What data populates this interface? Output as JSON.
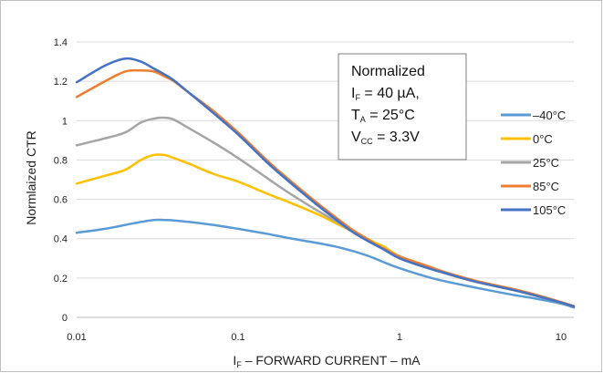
{
  "chart_data": {
    "type": "line",
    "title": "",
    "xlabel": {
      "main": "I",
      "sub": "F",
      "rest": " – FORWARD CURRENT – mA"
    },
    "ylabel": "Normlaized CTR",
    "x_scale": "log",
    "xlim": [
      0.01,
      12
    ],
    "ylim": [
      0,
      1.4
    ],
    "x_ticks": [
      0.01,
      0.1,
      1,
      10
    ],
    "x_tick_labels": [
      "0.01",
      "0.1",
      "1",
      "10"
    ],
    "y_ticks": [
      0,
      0.2,
      0.4,
      0.6,
      0.8,
      1,
      1.2,
      1.4
    ],
    "y_tick_labels": [
      "0",
      "0.2",
      "0.4",
      "0.6",
      "0.8",
      "1",
      "1.2",
      "1.4"
    ],
    "grid": "horizontal",
    "legend_position": "right",
    "annotation": {
      "title": "Normalized",
      "lines": [
        {
          "main": "I",
          "sub": "F",
          "rest": " = 40 µA,"
        },
        {
          "main": "T",
          "sub": "A",
          "rest": " = 25°C"
        },
        {
          "main": "V",
          "sub": "CC",
          "rest": " = 3.3V"
        }
      ]
    },
    "series": [
      {
        "name": "–40°C",
        "color": "#5b9bd5",
        "x": [
          0.01,
          0.015,
          0.02,
          0.025,
          0.03,
          0.035,
          0.04,
          0.05,
          0.07,
          0.1,
          0.15,
          0.2,
          0.3,
          0.4,
          0.5,
          0.6,
          0.7,
          0.8,
          1,
          1.5,
          2,
          3,
          5,
          7,
          10,
          12
        ],
        "y": [
          0.43,
          0.45,
          0.47,
          0.485,
          0.495,
          0.495,
          0.493,
          0.485,
          0.47,
          0.45,
          0.425,
          0.405,
          0.38,
          0.36,
          0.34,
          0.32,
          0.3,
          0.28,
          0.25,
          0.205,
          0.18,
          0.15,
          0.115,
          0.095,
          0.07,
          0.05
        ]
      },
      {
        "name": "0°C",
        "color": "#ffc000",
        "x": [
          0.01,
          0.015,
          0.02,
          0.025,
          0.03,
          0.035,
          0.04,
          0.05,
          0.07,
          0.1,
          0.15,
          0.2,
          0.3,
          0.4,
          0.5,
          0.6,
          0.7,
          0.8,
          1,
          1.5,
          2,
          3,
          5,
          7,
          10,
          12
        ],
        "y": [
          0.68,
          0.72,
          0.75,
          0.8,
          0.825,
          0.825,
          0.81,
          0.78,
          0.73,
          0.69,
          0.63,
          0.59,
          0.53,
          0.48,
          0.44,
          0.41,
          0.38,
          0.36,
          0.31,
          0.26,
          0.22,
          0.18,
          0.14,
          0.11,
          0.075,
          0.055
        ]
      },
      {
        "name": "25°C",
        "color": "#a5a5a5",
        "x": [
          0.01,
          0.015,
          0.02,
          0.025,
          0.03,
          0.035,
          0.04,
          0.05,
          0.07,
          0.1,
          0.15,
          0.2,
          0.3,
          0.4,
          0.5,
          0.6,
          0.7,
          0.8,
          1,
          1.5,
          2,
          3,
          5,
          7,
          10,
          12
        ],
        "y": [
          0.875,
          0.91,
          0.94,
          0.99,
          1.01,
          1.015,
          1.005,
          0.96,
          0.89,
          0.81,
          0.71,
          0.64,
          0.55,
          0.49,
          0.44,
          0.4,
          0.37,
          0.35,
          0.305,
          0.255,
          0.22,
          0.18,
          0.14,
          0.11,
          0.075,
          0.055
        ]
      },
      {
        "name": "85°C",
        "color": "#ed7d31",
        "x": [
          0.01,
          0.015,
          0.02,
          0.025,
          0.03,
          0.035,
          0.04,
          0.05,
          0.07,
          0.1,
          0.15,
          0.2,
          0.3,
          0.4,
          0.5,
          0.6,
          0.7,
          0.8,
          1,
          1.5,
          2,
          3,
          5,
          7,
          10,
          12
        ],
        "y": [
          1.12,
          1.2,
          1.25,
          1.255,
          1.25,
          1.225,
          1.2,
          1.14,
          1.05,
          0.94,
          0.8,
          0.71,
          0.59,
          0.51,
          0.45,
          0.41,
          0.375,
          0.35,
          0.31,
          0.26,
          0.225,
          0.185,
          0.145,
          0.115,
          0.078,
          0.058
        ]
      },
      {
        "name": "105°C",
        "color": "#4472c4",
        "x": [
          0.01,
          0.015,
          0.02,
          0.025,
          0.03,
          0.035,
          0.04,
          0.05,
          0.07,
          0.1,
          0.15,
          0.2,
          0.3,
          0.4,
          0.5,
          0.6,
          0.7,
          0.8,
          1,
          1.5,
          2,
          3,
          5,
          7,
          10,
          12
        ],
        "y": [
          1.195,
          1.28,
          1.315,
          1.3,
          1.265,
          1.235,
          1.205,
          1.14,
          1.04,
          0.93,
          0.79,
          0.7,
          0.58,
          0.5,
          0.44,
          0.4,
          0.37,
          0.345,
          0.3,
          0.25,
          0.22,
          0.18,
          0.14,
          0.11,
          0.075,
          0.055
        ]
      }
    ]
  }
}
